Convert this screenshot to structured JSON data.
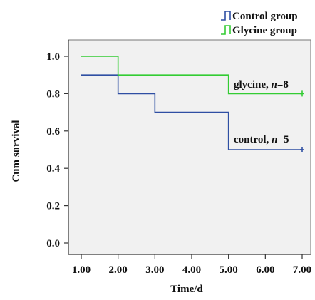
{
  "chart_data": {
    "type": "line",
    "step": true,
    "xlabel": "Time/d",
    "ylabel": "Cum survival",
    "xlim": [
      1,
      7
    ],
    "ylim": [
      0,
      1
    ],
    "x_ticks": [
      "1.00",
      "2.00",
      "3.00",
      "4.00",
      "5.00",
      "6.00",
      "7.00"
    ],
    "y_ticks": [
      "0.0",
      "0.2",
      "0.4",
      "0.6",
      "0.8",
      "1.0"
    ],
    "x_tick_values": [
      1,
      2,
      3,
      4,
      5,
      6,
      7
    ],
    "y_tick_values": [
      0,
      0.2,
      0.4,
      0.6,
      0.8,
      1.0
    ],
    "grid": false,
    "background": "#f1f1f1",
    "legend_position": "top-right",
    "series": [
      {
        "name": "Control group",
        "color": "#2f4fa3",
        "x": [
          1,
          2,
          3,
          5,
          7
        ],
        "y": [
          0.9,
          0.8,
          0.7,
          0.5,
          0.5
        ]
      },
      {
        "name": "Glycine group",
        "color": "#33cc33",
        "x": [
          1,
          2,
          5,
          7
        ],
        "y": [
          1.0,
          0.9,
          0.8,
          0.8
        ]
      }
    ],
    "annotations": [
      {
        "prefix": "glycine, ",
        "n": "n",
        "suffix": "=8",
        "series": 1
      },
      {
        "prefix": "control, ",
        "n": "n",
        "suffix": "=5",
        "series": 0
      }
    ]
  }
}
